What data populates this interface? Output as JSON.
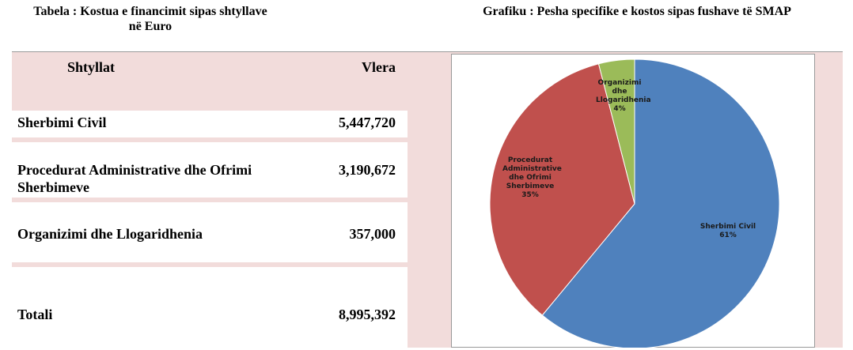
{
  "table": {
    "title": "Tabela : Kostua e financimit sipas shtyllave në Euro",
    "header": [
      "Shtyllat",
      "Vlera"
    ],
    "rows": [
      [
        "Sherbimi Civil",
        "5,447,720"
      ],
      [
        "Procedurat Administrative dhe Ofrimi Sherbimeve",
        "3,190,672"
      ],
      [
        "Organizimi dhe Llogaridhenia",
        "357,000"
      ],
      [
        "Totali",
        "8,995,392"
      ]
    ]
  },
  "chart_data": {
    "type": "pie",
    "title": "Grafiku : Pesha specifike e kostos sipas fushave të SMAP",
    "categories": [
      "Sherbimi Civil",
      "Procedurat Administrative dhe Ofrimi Sherbimeve",
      "Organizimi dhe Llogaridhenia"
    ],
    "values": [
      61,
      35,
      4
    ],
    "value_labels": [
      "61%",
      "35%",
      "4%"
    ],
    "colors": [
      "#4f81bd",
      "#c0504d",
      "#9bbb59"
    ]
  }
}
